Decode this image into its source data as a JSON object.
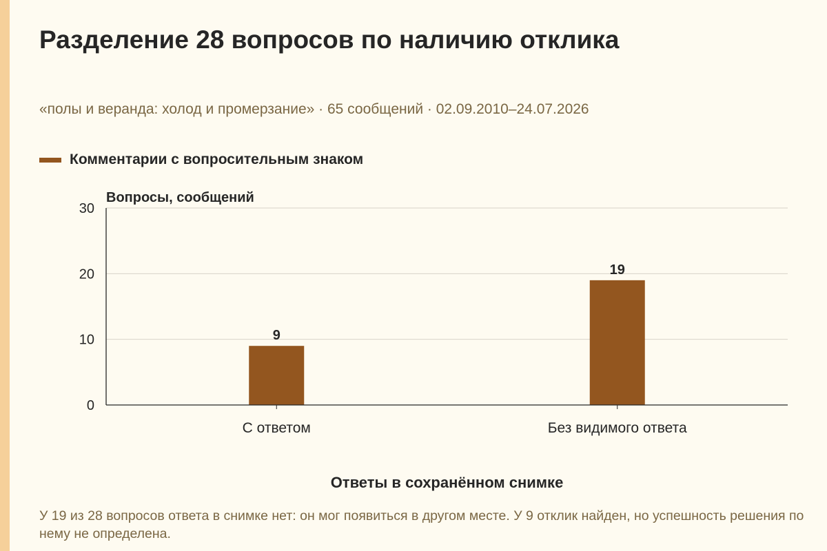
{
  "colors": {
    "bar": "#93561f",
    "accent_strip": "#f6d09a",
    "background": "#fefbf1",
    "muted_text": "#7a6744"
  },
  "chart_data": {
    "type": "bar",
    "title": "Разделение 28 вопросов по наличию отклика",
    "subtitle": "«полы и веранда: холод и промерзание» · 65 сообщений · 02.09.2010–24.07.2026",
    "xlabel": "Ответы в сохранённом снимке",
    "ylabel": "Вопросы, сообщений",
    "categories": [
      "С ответом",
      "Без видимого ответа"
    ],
    "series": [
      {
        "name": "Комментарии с вопросительным знаком",
        "values": [
          9,
          19
        ]
      }
    ],
    "ylim": [
      0,
      30
    ],
    "yticks": [
      0,
      10,
      20,
      30
    ],
    "data_labels": [
      "9",
      "19"
    ],
    "grid": true,
    "legend_position": "top-left"
  },
  "note": "У 19 из 28 вопросов ответа в снимке нет: он мог появиться в другом месте. У 9 отклик найден, но успешность решения по нему не определена."
}
